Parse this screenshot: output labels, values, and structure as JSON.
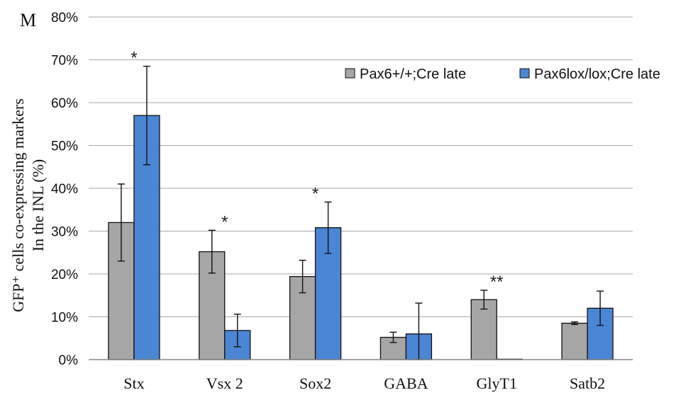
{
  "panel_label": "M",
  "chart_data": {
    "type": "bar",
    "categories": [
      "Stx",
      "Vsx 2",
      "Sox2",
      "GABA",
      "GlyT1",
      "Satb2"
    ],
    "ylabel_line1": "GFP⁺ cells co-expressing markers",
    "ylabel_line2": "In the INL (%)",
    "ylim": [
      0,
      80
    ],
    "yticks": [
      "0%",
      "10%",
      "20%",
      "30%",
      "40%",
      "50%",
      "60%",
      "70%",
      "80%"
    ],
    "grid": true,
    "legend_position": "top-right",
    "series": [
      {
        "name": "Pax6+/+;Cre late",
        "color": "#a6a6a6",
        "values": [
          32,
          25.2,
          19.4,
          5.2,
          14,
          8.5
        ],
        "errors": [
          9,
          5,
          3.8,
          1.2,
          2.2,
          0.3
        ]
      },
      {
        "name": "Pax6lox/lox;Cre late",
        "color": "#4a86d4",
        "values": [
          57,
          6.8,
          30.8,
          6,
          0.1,
          12
        ],
        "errors": [
          11.5,
          3.8,
          6,
          7.2,
          0,
          4
        ]
      }
    ],
    "annotations": [
      {
        "category": 0,
        "text": "*"
      },
      {
        "category": 1,
        "text": "*"
      },
      {
        "category": 2,
        "text": "*"
      },
      {
        "category": 4,
        "text": "**"
      }
    ]
  }
}
